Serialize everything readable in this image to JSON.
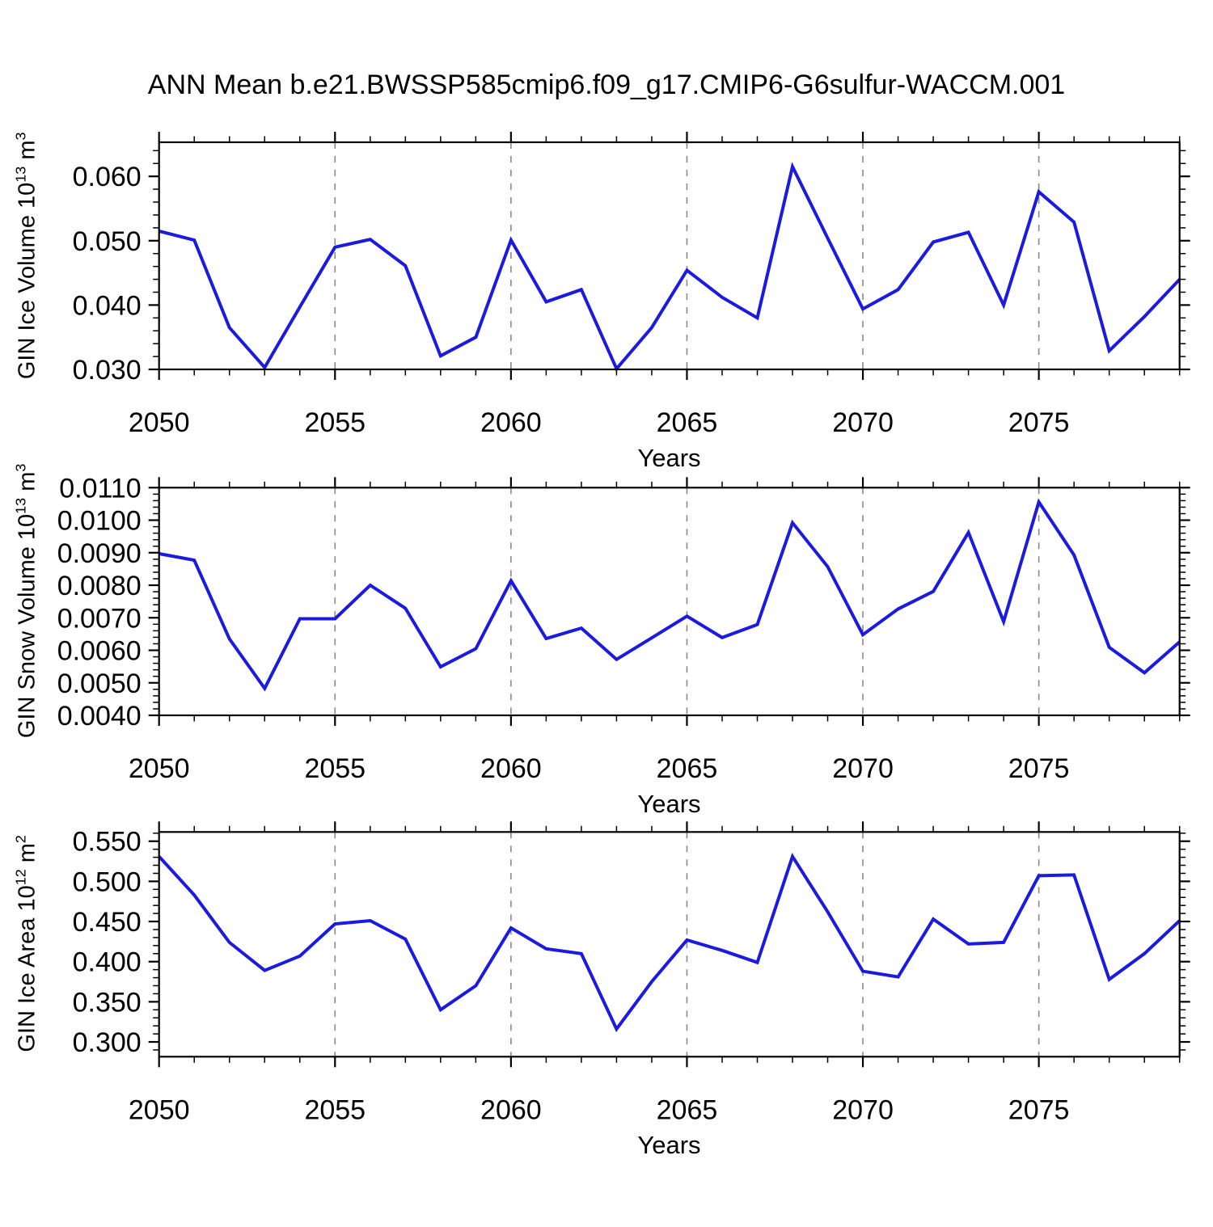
{
  "title": "ANN Mean b.e21.BWSSP585cmip6.f09_g17.CMIP6-G6sulfur-WACCM.001",
  "colors": {
    "line": "#1a1ae0",
    "grid": "#898989",
    "frame": "#000000"
  },
  "x_axis": {
    "label": "Years",
    "min": 2050,
    "max": 2079,
    "major_ticks": [
      2050,
      2055,
      2060,
      2065,
      2070,
      2075
    ],
    "major_labels": [
      "2050",
      "2055",
      "2060",
      "2065",
      "2070",
      "2075"
    ],
    "minor_step": 1,
    "gridlines": [
      2055,
      2060,
      2065,
      2070,
      2075
    ]
  },
  "chart_data": [
    {
      "type": "line",
      "name": "gin-ice-volume",
      "ylabel": "GIN Ice Volume 10^{13} m^{3}",
      "ylim": [
        0.03,
        0.0653
      ],
      "yticks": [
        0.03,
        0.04,
        0.05,
        0.06
      ],
      "ytick_labels": [
        "0.030",
        "0.040",
        "0.050",
        "0.060"
      ],
      "yminor_step": 0.002,
      "x": [
        2050,
        2051,
        2052,
        2053,
        2054,
        2055,
        2056,
        2057,
        2058,
        2059,
        2060,
        2061,
        2062,
        2063,
        2064,
        2065,
        2066,
        2067,
        2068,
        2069,
        2070,
        2071,
        2072,
        2073,
        2074,
        2075,
        2076,
        2077,
        2078,
        2079
      ],
      "values": [
        0.0515,
        0.0501,
        0.0365,
        0.0303,
        0.0397,
        0.049,
        0.0502,
        0.0461,
        0.0321,
        0.035,
        0.0501,
        0.0405,
        0.0424,
        0.0301,
        0.0365,
        0.0454,
        0.0412,
        0.038,
        0.0615,
        0.0504,
        0.0394,
        0.0424,
        0.0498,
        0.0513,
        0.04,
        0.0576,
        0.0529,
        0.0329,
        0.0382,
        0.044
      ]
    },
    {
      "type": "line",
      "name": "gin-snow-volume",
      "ylabel": "GIN Snow Volume 10^{13} m^{3}",
      "ylim": [
        0.004,
        0.011
      ],
      "yticks": [
        0.004,
        0.005,
        0.006,
        0.007,
        0.008,
        0.009,
        0.01,
        0.011
      ],
      "ytick_labels": [
        "0.0040",
        "0.0050",
        "0.0060",
        "0.0070",
        "0.0080",
        "0.0090",
        "0.0100",
        "0.0110"
      ],
      "yminor_step": 0.0002,
      "x": [
        2050,
        2051,
        2052,
        2053,
        2054,
        2055,
        2056,
        2057,
        2058,
        2059,
        2060,
        2061,
        2062,
        2063,
        2064,
        2065,
        2066,
        2067,
        2068,
        2069,
        2070,
        2071,
        2072,
        2073,
        2074,
        2075,
        2076,
        2077,
        2078,
        2079
      ],
      "values": [
        0.00897,
        0.00877,
        0.00635,
        0.00483,
        0.00697,
        0.00697,
        0.008,
        0.00729,
        0.00549,
        0.00605,
        0.00814,
        0.00636,
        0.00668,
        0.00572,
        0.00638,
        0.00705,
        0.00639,
        0.00679,
        0.00992,
        0.00857,
        0.00648,
        0.00727,
        0.00781,
        0.00962,
        0.00688,
        0.01056,
        0.00893,
        0.00609,
        0.00531,
        0.00626
      ]
    },
    {
      "type": "line",
      "name": "gin-ice-area",
      "ylabel": "GIN Ice Area 10^{12} m^{2}",
      "ylim": [
        0.2816,
        0.5615
      ],
      "yticks": [
        0.3,
        0.35,
        0.4,
        0.45,
        0.5,
        0.55
      ],
      "ytick_labels": [
        "0.300",
        "0.350",
        "0.400",
        "0.450",
        "0.500",
        "0.550"
      ],
      "yminor_step": 0.01,
      "x": [
        2050,
        2051,
        2052,
        2053,
        2054,
        2055,
        2056,
        2057,
        2058,
        2059,
        2060,
        2061,
        2062,
        2063,
        2064,
        2065,
        2066,
        2067,
        2068,
        2069,
        2070,
        2071,
        2072,
        2073,
        2074,
        2075,
        2076,
        2077,
        2078,
        2079
      ],
      "values": [
        0.531,
        0.483,
        0.424,
        0.389,
        0.407,
        0.447,
        0.451,
        0.428,
        0.34,
        0.37,
        0.442,
        0.416,
        0.41,
        0.316,
        0.375,
        0.427,
        0.414,
        0.399,
        0.531,
        0.462,
        0.388,
        0.381,
        0.453,
        0.422,
        0.424,
        0.507,
        0.508,
        0.378,
        0.41,
        0.451
      ]
    }
  ]
}
